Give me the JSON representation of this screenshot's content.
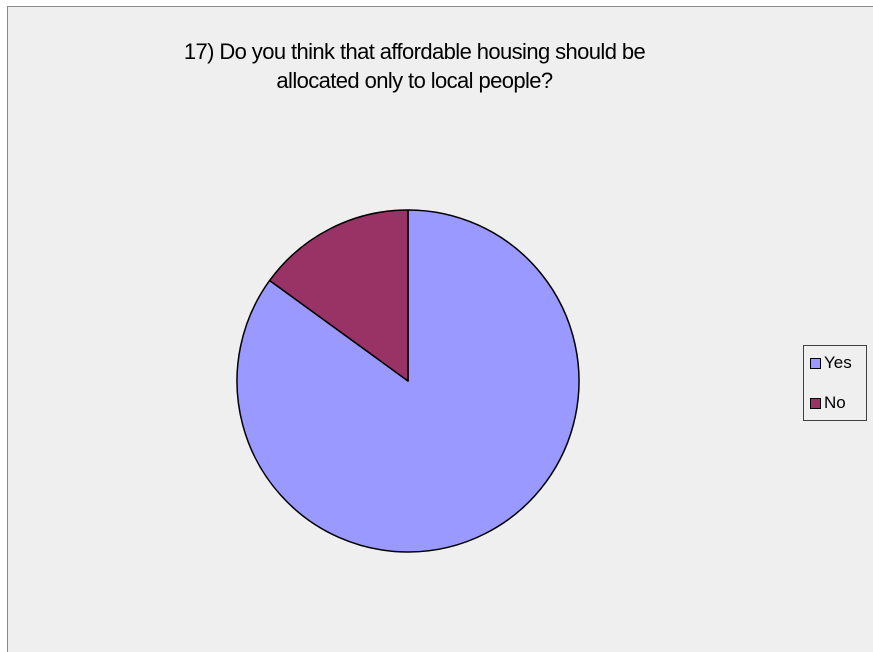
{
  "chart_data": {
    "type": "pie",
    "title_lines": [
      "17) Do you think that affordable housing should be",
      "allocated only to local people?"
    ],
    "categories": [
      "Yes",
      "No"
    ],
    "values": [
      85,
      15
    ],
    "colors": [
      "#9999ff",
      "#993366"
    ],
    "legend": "right"
  }
}
